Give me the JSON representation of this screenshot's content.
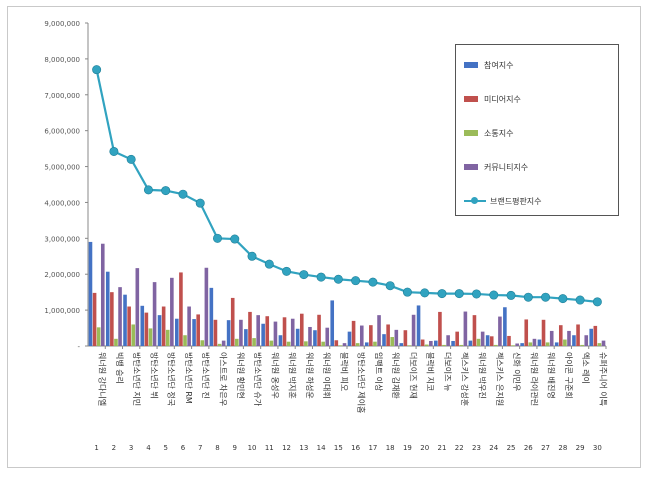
{
  "chart_data": {
    "type": "bar",
    "ylim": [
      0,
      9000000
    ],
    "y_ticks": [
      "9,000,000",
      "8,000,000",
      "7,000,000",
      "6,000,000",
      "5,000,000",
      "4,000,000",
      "3,000,000",
      "2,000,000",
      "1,000,000",
      "-"
    ],
    "grid": false,
    "legend_position": "top-right",
    "categories": [
      "워너원 강다니엘",
      "빅뱅 승리",
      "방탄소년단 지민",
      "방탄소년단 뷔",
      "방탄소년단 정국",
      "방탄소년단 RM",
      "방탄소년단 진",
      "아스트로 차은우",
      "워너원 황민현",
      "방탄소년단 슈가",
      "워너원 옹성우",
      "워너원 박지훈",
      "워너원 하성운",
      "워너원 이대휘",
      "블락비 피오",
      "방탄소년단 제이홉",
      "임팩트 이상",
      "워너원 김재환",
      "더보이즈 현재",
      "블락비 지코",
      "더보이즈 뉴",
      "젝스키스 강성훈",
      "워너원 박우진",
      "젝스키스 은지원",
      "신화 이민우",
      "워너원 라이관린",
      "워너원 배진영",
      "아이콘 구준회",
      "엑소 레이",
      "슈퍼주니어 이특"
    ],
    "ranks": [
      "1",
      "2",
      "3",
      "4",
      "5",
      "6",
      "7",
      "8",
      "9",
      "10",
      "11",
      "12",
      "13",
      "14",
      "15",
      "16",
      "17",
      "18",
      "19",
      "20",
      "21",
      "22",
      "23",
      "24",
      "25",
      "26",
      "27",
      "28",
      "29",
      "30"
    ],
    "series": [
      {
        "name": "참여지수",
        "kind": "bar",
        "color": "#4472c4",
        "values": [
          2900000,
          2070000,
          1430000,
          1120000,
          860000,
          760000,
          750000,
          1620000,
          720000,
          470000,
          620000,
          300000,
          480000,
          440000,
          1270000,
          400000,
          100000,
          330000,
          80000,
          1130000,
          150000,
          140000,
          150000,
          300000,
          1080000,
          80000,
          180000,
          100000,
          300000,
          480000
        ]
      },
      {
        "name": "미디어지수",
        "kind": "bar",
        "color": "#c0504d",
        "values": [
          1480000,
          1500000,
          1100000,
          930000,
          1100000,
          2050000,
          880000,
          730000,
          1340000,
          950000,
          830000,
          800000,
          900000,
          870000,
          160000,
          700000,
          580000,
          600000,
          440000,
          180000,
          950000,
          400000,
          860000,
          270000,
          280000,
          740000,
          730000,
          580000,
          600000,
          560000
        ]
      },
      {
        "name": "소통지수",
        "kind": "bar",
        "color": "#9bbb59",
        "values": [
          520000,
          200000,
          600000,
          490000,
          450000,
          300000,
          160000,
          60000,
          200000,
          220000,
          150000,
          120000,
          130000,
          120000,
          20000,
          80000,
          120000,
          250000,
          20000,
          40000,
          30000,
          30000,
          200000,
          30000,
          20000,
          100000,
          100000,
          180000,
          30000,
          80000
        ]
      },
      {
        "name": "커뮤니티지수",
        "kind": "bar",
        "color": "#8064a2",
        "values": [
          2850000,
          1640000,
          2170000,
          1780000,
          1900000,
          1100000,
          2180000,
          150000,
          730000,
          860000,
          680000,
          760000,
          530000,
          510000,
          80000,
          570000,
          860000,
          450000,
          870000,
          140000,
          300000,
          960000,
          400000,
          820000,
          70000,
          200000,
          420000,
          420000,
          300000,
          150000
        ]
      },
      {
        "name": "브랜드평판지수",
        "kind": "line",
        "color": "#31a3c0",
        "values": [
          7700000,
          5420000,
          5200000,
          4350000,
          4330000,
          4230000,
          3980000,
          3000000,
          2980000,
          2500000,
          2280000,
          2080000,
          1990000,
          1920000,
          1860000,
          1820000,
          1780000,
          1680000,
          1500000,
          1480000,
          1460000,
          1460000,
          1450000,
          1420000,
          1410000,
          1360000,
          1360000,
          1320000,
          1280000,
          1230000
        ]
      }
    ]
  }
}
